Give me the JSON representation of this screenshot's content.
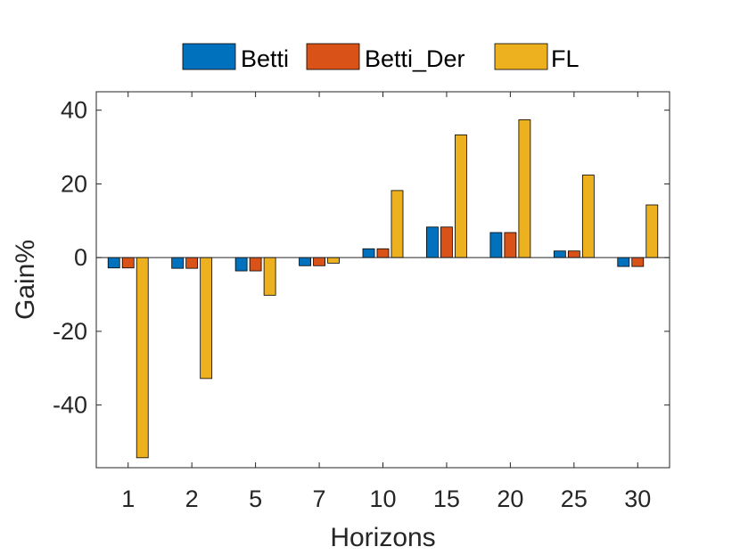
{
  "chart_data": {
    "type": "bar",
    "title": "",
    "xlabel": "Horizons",
    "ylabel": "Gain%",
    "categories": [
      "1",
      "2",
      "5",
      "7",
      "10",
      "15",
      "20",
      "25",
      "30"
    ],
    "series": [
      {
        "name": "Betti",
        "color": "#0072BD",
        "values": [
          -2.8,
          -2.9,
          -3.6,
          -2.2,
          2.4,
          8.3,
          6.8,
          1.8,
          -2.4
        ]
      },
      {
        "name": "Betti_Der",
        "color": "#D95319",
        "values": [
          -2.8,
          -2.9,
          -3.6,
          -2.2,
          2.4,
          8.3,
          6.8,
          1.8,
          -2.4
        ]
      },
      {
        "name": "FL",
        "color": "#EDB120",
        "values": [
          -54.3,
          -32.8,
          -10.2,
          -1.5,
          18.2,
          33.3,
          37.4,
          22.4,
          14.3
        ]
      }
    ],
    "ylim": [
      -57,
      45
    ],
    "yticks": [
      40,
      20,
      0,
      -20,
      -40
    ],
    "yticklabels": [
      "40",
      "20",
      "0",
      "-20",
      "-40"
    ],
    "grid": false,
    "legend": "top, horizontal, outside"
  }
}
